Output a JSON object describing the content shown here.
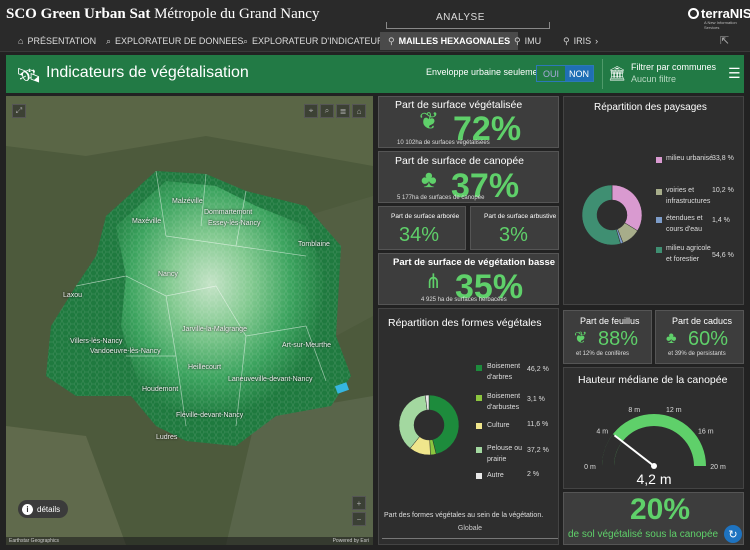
{
  "app": {
    "title_bold": "SCO Green Urban Sat",
    "title_rest": " Métropole du Grand Nancy",
    "section": "ANALYSE",
    "brand": "terraNIS",
    "brand_sub": "A New Information Services"
  },
  "nav": {
    "tabs": [
      {
        "icon": "home-icon",
        "label": "PRÉSENTATION"
      },
      {
        "icon": "search-icon",
        "label": "EXPLORATEUR DE DONNEES"
      },
      {
        "icon": "search-icon",
        "label": "EXPLORATEUR D'INDICATEURS"
      },
      {
        "icon": "pin-icon",
        "label": "MAILLES HEXAGONALES",
        "active": true
      },
      {
        "icon": "pin-icon",
        "label": "IMU"
      },
      {
        "icon": "pin-icon",
        "label": "IRIS"
      }
    ],
    "more": "›"
  },
  "header": {
    "title": "Indicateurs de végétalisation",
    "envelope_label": "Enveloppe urbaine seulement",
    "toggle_oui": "OUI",
    "toggle_non": "NON",
    "toggle_selected": "NON",
    "filter_label": "Filtrer par communes",
    "filter_value": "Aucun filtre"
  },
  "map": {
    "labels": [
      "Malzéville",
      "Maxéville",
      "Dommartemont",
      "Essey-lès-Nancy",
      "Tomblaine",
      "Nancy",
      "Laxou",
      "Jarville-la-Malgrange",
      "Villers-lès-Nancy",
      "Vandoeuvre-lès-Nancy",
      "Art-sur-Meurthe",
      "Heillecourt",
      "Laneuveville-devant-Nancy",
      "Houdemont",
      "Ludres",
      "Fléville-devant-Nancy"
    ],
    "details_label": "détails",
    "details_icon": "i",
    "attribution_left": "Earthstar Geographics",
    "attribution_right": "Powered by Esri"
  },
  "surface_veg": {
    "title": "Part de surface végétalisée",
    "value": "72%",
    "sub": "10 102ha de surfaces végétalisées"
  },
  "canopee": {
    "title": "Part de surface de canopée",
    "value": "37%",
    "sub": "5 177ha de surfaces de canopée"
  },
  "arboree": {
    "title": "Part de surface arborée",
    "value": "34%"
  },
  "arbustive": {
    "title": "Part de surface arbustive",
    "value": "3%"
  },
  "veg_basse": {
    "title": "Part de surface de végétation basse",
    "value": "35%",
    "sub": "4 925 ha de surfaces herbacées"
  },
  "paysages": {
    "title": "Répartition des paysages",
    "items": [
      {
        "label": "milieu urbanisé",
        "value": "33,8 %",
        "pct": 33.8,
        "color": "#d99ad0"
      },
      {
        "label": "voiries et infrastructures",
        "value": "10,2 %",
        "pct": 10.2,
        "color": "#a7ad8a"
      },
      {
        "label": "étendues et cours d'eau",
        "value": "1,4 %",
        "pct": 1.4,
        "color": "#7d9cc9"
      },
      {
        "label": "milieu agricole et forestier",
        "value": "54,6 %",
        "pct": 54.6,
        "color": "#3f8f72"
      }
    ]
  },
  "formes": {
    "title": "Répartition des formes végétales",
    "items": [
      {
        "label": "Boisement d'arbres",
        "value": "46,2 %",
        "pct": 46.2,
        "color": "#1d8b3c"
      },
      {
        "label": "Boisement d'arbustes",
        "value": "3,1 %",
        "pct": 3.1,
        "color": "#8cc63f"
      },
      {
        "label": "Culture",
        "value": "11,6 %",
        "pct": 11.6,
        "color": "#f0e68c"
      },
      {
        "label": "Pelouse ou prairie",
        "value": "37,2 %",
        "pct": 37.2,
        "color": "#a3d8a0"
      },
      {
        "label": "Autre",
        "value": "2 %",
        "pct": 2,
        "color": "#e8e8e8"
      }
    ],
    "footer": "Part des formes végétales au sein de la végétation.",
    "select_value": "Globale"
  },
  "feuillus": {
    "title": "Part de feuillus",
    "value": "88%",
    "sub": "et 12% de conifères"
  },
  "caducs": {
    "title": "Part de caducs",
    "value": "60%",
    "sub": "et 39% de persistants"
  },
  "hauteur": {
    "title": "Hauteur médiane de la canopée",
    "value_label": "4,2 m",
    "value": 4.2,
    "max": 20,
    "ticks": [
      "0 m",
      "4 m",
      "8 m",
      "12 m",
      "16 m",
      "20 m"
    ]
  },
  "sous_canopee": {
    "value": "20%",
    "sub": "de sol végétalisé sous la canopée"
  }
}
